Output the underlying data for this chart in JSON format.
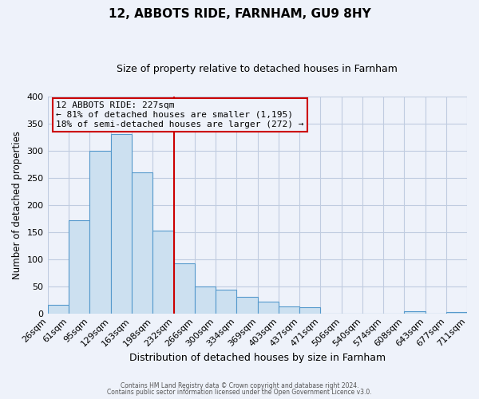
{
  "title": "12, ABBOTS RIDE, FARNHAM, GU9 8HY",
  "subtitle": "Size of property relative to detached houses in Farnham",
  "xlabel": "Distribution of detached houses by size in Farnham",
  "ylabel": "Number of detached properties",
  "bin_edges": [
    26,
    61,
    95,
    129,
    163,
    198,
    232,
    266,
    300,
    334,
    369,
    403,
    437,
    471,
    506,
    540,
    574,
    608,
    643,
    677,
    711
  ],
  "bar_heights": [
    15,
    172,
    300,
    330,
    259,
    153,
    92,
    50,
    43,
    30,
    22,
    13,
    11,
    0,
    0,
    0,
    0,
    4,
    0,
    3
  ],
  "bar_facecolor": "#cce0f0",
  "bar_edgecolor": "#5599cc",
  "vline_x": 232,
  "vline_color": "#cc0000",
  "annotation_title": "12 ABBOTS RIDE: 227sqm",
  "annotation_line1": "← 81% of detached houses are smaller (1,195)",
  "annotation_line2": "18% of semi-detached houses are larger (272) →",
  "annotation_box_edgecolor": "#cc0000",
  "tick_labels": [
    "26sqm",
    "61sqm",
    "95sqm",
    "129sqm",
    "163sqm",
    "198sqm",
    "232sqm",
    "266sqm",
    "300sqm",
    "334sqm",
    "369sqm",
    "403sqm",
    "437sqm",
    "471sqm",
    "506sqm",
    "540sqm",
    "574sqm",
    "608sqm",
    "643sqm",
    "677sqm",
    "711sqm"
  ],
  "ylim": [
    0,
    400
  ],
  "yticks": [
    0,
    50,
    100,
    150,
    200,
    250,
    300,
    350,
    400
  ],
  "footer1": "Contains HM Land Registry data © Crown copyright and database right 2024.",
  "footer2": "Contains public sector information licensed under the Open Government Licence v3.0.",
  "background_color": "#eef2fa",
  "grid_color": "#c0cce0"
}
